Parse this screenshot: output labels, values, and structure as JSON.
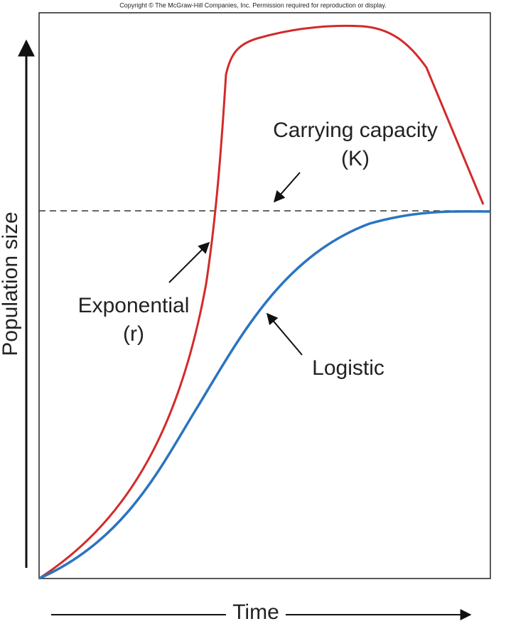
{
  "header": {
    "copyright": "Copyright © The McGraw-Hill Companies, Inc. Permission required for reproduction or display."
  },
  "axes": {
    "y_label": "Population size",
    "x_label": "Time"
  },
  "labels": {
    "carrying_capacity": "Carrying capacity",
    "carrying_capacity_symbol": "(K)",
    "exponential": "Exponential",
    "exponential_symbol": "(r)",
    "logistic": "Logistic"
  }
}
